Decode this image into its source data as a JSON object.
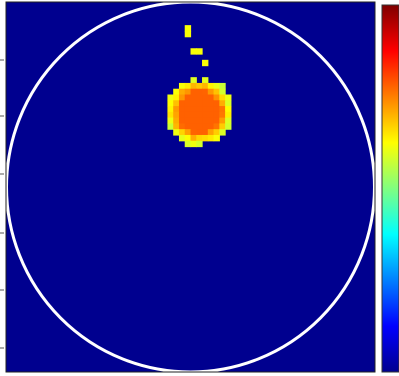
{
  "chart_data": {
    "type": "heatmap",
    "title": "",
    "xlabel": "",
    "ylabel": "",
    "grid": false,
    "legend": "none",
    "colormap": "jet",
    "background_color": "#00008f",
    "circle_color": "#ffffff",
    "colorbar": {
      "position": "right",
      "ticks": []
    },
    "grid_size": 64,
    "field_extent": [
      0,
      64
    ],
    "blob": {
      "peak_value": 0.78,
      "center": [
        33.5,
        19
      ],
      "core_sigma": 2.4,
      "halo_sigma": 5.2,
      "threshold": 0.35
    },
    "frame_cells": [
      [
        31.5,
        4.5
      ],
      [
        31.5,
        5.5
      ],
      [
        32.5,
        8.5
      ],
      [
        33.5,
        8.5
      ],
      [
        34.5,
        10.5
      ]
    ]
  }
}
